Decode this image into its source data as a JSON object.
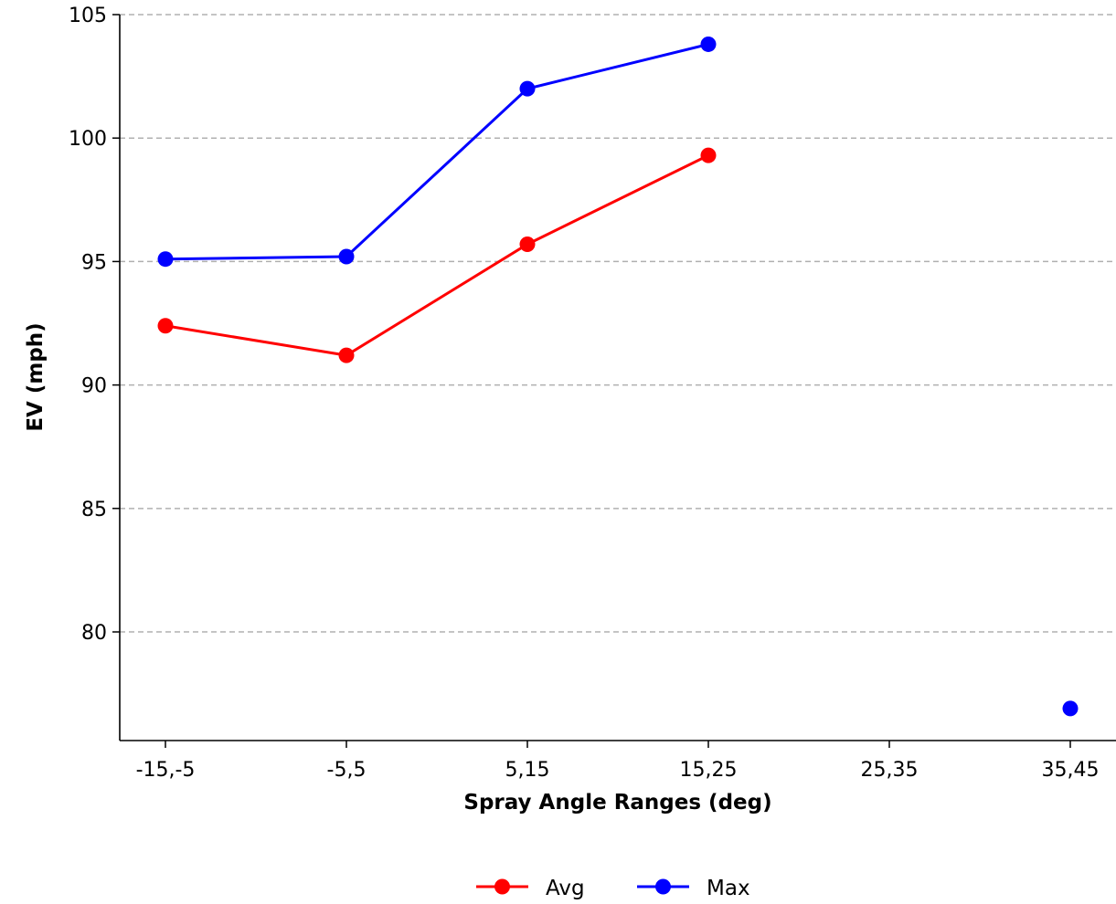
{
  "chart_data": {
    "type": "line",
    "categories": [
      "-15,-5",
      "-5,5",
      "5,15",
      "15,25",
      "25,35",
      "35,45"
    ],
    "series": [
      {
        "name": "Avg",
        "color": "#ff0000",
        "values": [
          92.4,
          91.2,
          95.7,
          99.3,
          null,
          null
        ]
      },
      {
        "name": "Max",
        "color": "#0000ff",
        "values": [
          95.1,
          95.2,
          102.0,
          103.8,
          null,
          76.9
        ]
      }
    ],
    "xlabel": "Spray Angle Ranges (deg)",
    "ylabel": "EV (mph)",
    "yticks": [
      80,
      85,
      90,
      95,
      100,
      105
    ],
    "ylim": [
      75.6,
      105
    ],
    "grid": "horizontal dashed",
    "legend": "bottom-center"
  }
}
